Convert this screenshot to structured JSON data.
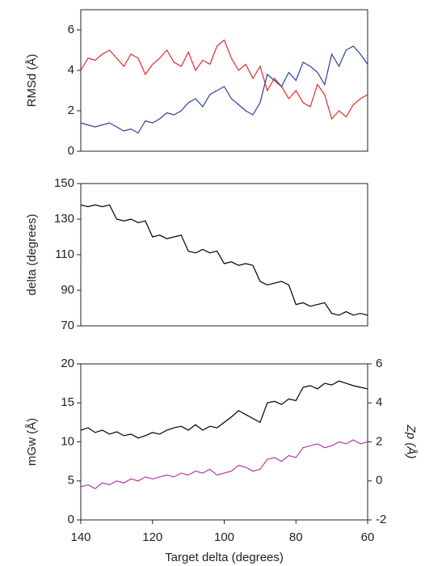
{
  "chart_data": [
    {
      "type": "line",
      "y_label": "RMSd (Å)",
      "x": [
        140,
        138,
        136,
        134,
        132,
        130,
        128,
        126,
        124,
        122,
        120,
        118,
        116,
        114,
        112,
        110,
        108,
        106,
        104,
        102,
        100,
        98,
        96,
        94,
        92,
        90,
        88,
        86,
        84,
        82,
        80,
        78,
        76,
        74,
        72,
        70,
        68,
        66,
        64,
        62,
        60
      ],
      "series": [
        {
          "color": "#e8292b",
          "values": [
            4.0,
            4.6,
            4.5,
            4.8,
            5.0,
            4.6,
            4.2,
            4.8,
            4.6,
            3.8,
            4.3,
            4.6,
            5.0,
            4.4,
            4.2,
            4.9,
            4.0,
            4.5,
            4.3,
            5.2,
            5.5,
            4.6,
            4.0,
            4.3,
            3.6,
            4.2,
            3.0,
            3.6,
            3.2,
            2.6,
            3.0,
            2.4,
            2.2,
            3.3,
            2.8,
            1.6,
            2.0,
            1.7,
            2.3,
            2.6,
            2.8
          ]
        },
        {
          "color": "#2b3f9e",
          "values": [
            1.4,
            1.3,
            1.2,
            1.3,
            1.4,
            1.2,
            1.0,
            1.1,
            0.9,
            1.5,
            1.4,
            1.6,
            1.9,
            1.8,
            2.0,
            2.4,
            2.6,
            2.2,
            2.8,
            3.0,
            3.2,
            2.6,
            2.3,
            2.0,
            1.8,
            2.4,
            3.8,
            3.5,
            3.2,
            3.9,
            3.5,
            4.4,
            4.2,
            3.9,
            3.3,
            4.8,
            4.2,
            5.0,
            5.2,
            4.8,
            4.3
          ]
        }
      ],
      "xlim": [
        140,
        60
      ],
      "ylim": [
        0,
        7
      ],
      "yticks": [
        0,
        2,
        4,
        6
      ]
    },
    {
      "type": "line",
      "y_label": "delta (degrees)",
      "x": [
        140,
        138,
        136,
        134,
        132,
        130,
        128,
        126,
        124,
        122,
        120,
        118,
        116,
        114,
        112,
        110,
        108,
        106,
        104,
        102,
        100,
        98,
        96,
        94,
        92,
        90,
        88,
        86,
        84,
        82,
        80,
        78,
        76,
        74,
        72,
        70,
        68,
        66,
        64,
        62,
        60
      ],
      "series": [
        {
          "color": "#000000",
          "values": [
            138,
            137,
            138,
            137,
            138,
            130,
            129,
            130,
            128,
            129,
            120,
            121,
            119,
            120,
            121,
            112,
            111,
            113,
            111,
            112,
            105,
            106,
            104,
            105,
            104,
            95,
            93,
            94,
            95,
            93,
            82,
            83,
            81,
            82,
            83,
            77,
            76,
            78,
            76,
            77,
            76
          ]
        }
      ],
      "xlim": [
        140,
        60
      ],
      "ylim": [
        70,
        150
      ],
      "yticks": [
        70,
        90,
        110,
        130,
        150
      ]
    },
    {
      "type": "line",
      "y_label": "mGw (Å)",
      "y2_label": "Zp (Å)",
      "x_label": "Target delta (degrees)",
      "x": [
        140,
        138,
        136,
        134,
        132,
        130,
        128,
        126,
        124,
        122,
        120,
        118,
        116,
        114,
        112,
        110,
        108,
        106,
        104,
        102,
        100,
        98,
        96,
        94,
        92,
        90,
        88,
        86,
        84,
        82,
        80,
        78,
        76,
        74,
        72,
        70,
        68,
        66,
        64,
        62,
        60
      ],
      "series": [
        {
          "color": "#000000",
          "values": [
            11.5,
            11.8,
            11.2,
            11.5,
            11.0,
            11.3,
            10.8,
            11.0,
            10.5,
            10.8,
            11.2,
            11.0,
            11.5,
            11.8,
            12.0,
            11.5,
            12.2,
            11.5,
            12.0,
            11.8,
            12.5,
            13.2,
            14.0,
            13.5,
            13.0,
            12.5,
            15.0,
            15.2,
            14.8,
            15.5,
            15.3,
            17.0,
            17.2,
            16.8,
            17.5,
            17.3,
            17.8,
            17.5,
            17.2,
            17.0,
            16.8
          ]
        },
        {
          "color": "#b43aa8",
          "axis": "y2",
          "values": [
            -0.3,
            -0.2,
            -0.4,
            -0.1,
            -0.2,
            0.0,
            -0.1,
            0.1,
            0.0,
            0.2,
            0.1,
            0.2,
            0.3,
            0.2,
            0.4,
            0.3,
            0.5,
            0.4,
            0.6,
            0.3,
            0.4,
            0.5,
            0.8,
            0.7,
            0.5,
            0.6,
            1.1,
            1.2,
            1.0,
            1.3,
            1.2,
            1.7,
            1.8,
            1.9,
            1.7,
            1.8,
            2.0,
            1.9,
            2.1,
            1.9,
            2.0
          ]
        }
      ],
      "xlim": [
        140,
        60
      ],
      "xticks": [
        140,
        120,
        100,
        80,
        60
      ],
      "ylim": [
        0,
        20
      ],
      "yticks": [
        0,
        5,
        10,
        15,
        20
      ],
      "y2lim": [
        -2,
        6
      ],
      "y2ticks": [
        -2,
        0,
        2,
        4,
        6
      ]
    }
  ]
}
